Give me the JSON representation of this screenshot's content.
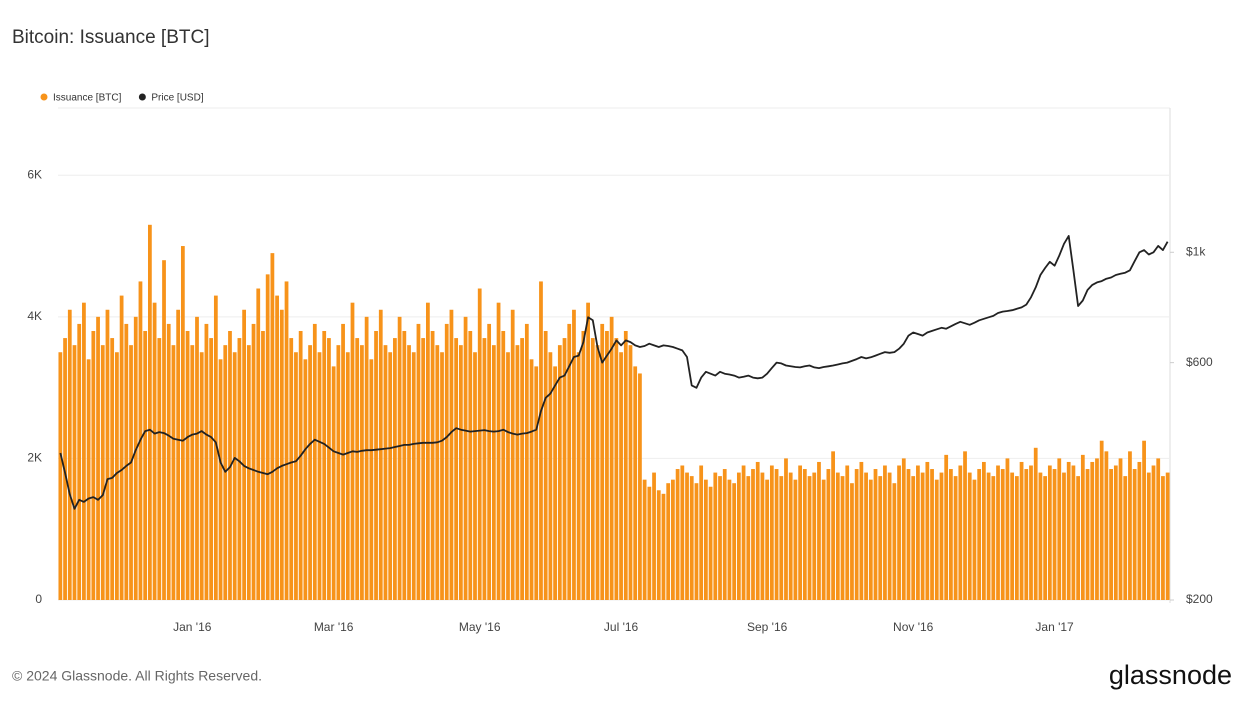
{
  "chart_data": {
    "type": "bar-line",
    "title": "Bitcoin: Issuance [BTC]",
    "footer": "© 2024 Glassnode. All Rights Reserved.",
    "brand": "glassnode",
    "categories": [
      null,
      null,
      null,
      null,
      null,
      null,
      null,
      null,
      null,
      null,
      null,
      null,
      null,
      null,
      null,
      null,
      null,
      null,
      null,
      null,
      null,
      null,
      null,
      null,
      null,
      null,
      null,
      null,
      "Jan '16",
      null,
      null,
      null,
      null,
      null,
      null,
      null,
      null,
      null,
      null,
      null,
      null,
      null,
      null,
      null,
      null,
      null,
      null,
      null,
      null,
      null,
      null,
      null,
      null,
      null,
      null,
      null,
      null,
      null,
      "Mar '16",
      null,
      null,
      null,
      null,
      null,
      null,
      null,
      null,
      null,
      null,
      null,
      null,
      null,
      null,
      null,
      null,
      null,
      null,
      null,
      null,
      null,
      null,
      null,
      null,
      null,
      null,
      null,
      null,
      null,
      null,
      "May '16",
      null,
      null,
      null,
      null,
      null,
      null,
      null,
      null,
      null,
      null,
      null,
      null,
      null,
      null,
      null,
      null,
      null,
      null,
      null,
      null,
      null,
      null,
      null,
      null,
      null,
      null,
      null,
      null,
      null,
      "Jul '16",
      null,
      null,
      null,
      null,
      null,
      null,
      null,
      null,
      null,
      null,
      null,
      null,
      null,
      null,
      null,
      null,
      null,
      null,
      null,
      null,
      null,
      null,
      null,
      null,
      null,
      null,
      null,
      null,
      null,
      null,
      "Sep '16",
      null,
      null,
      null,
      null,
      null,
      null,
      null,
      null,
      null,
      null,
      null,
      null,
      null,
      null,
      null,
      null,
      null,
      null,
      null,
      null,
      null,
      null,
      null,
      null,
      null,
      null,
      null,
      null,
      null,
      null,
      "Nov '16",
      null,
      null,
      null,
      null,
      null,
      null,
      null,
      null,
      null,
      null,
      null,
      null,
      null,
      null,
      null,
      null,
      null,
      null,
      null,
      null,
      null,
      null,
      null,
      null,
      null,
      null,
      null,
      null,
      null,
      "Jan '17",
      null,
      null,
      null,
      null,
      null,
      null,
      null,
      null,
      null,
      null,
      null,
      null,
      null,
      null,
      null,
      null,
      null,
      null,
      null,
      null,
      null,
      null,
      null,
      null
    ],
    "series": [
      {
        "name": "Issuance [BTC]",
        "color": "#f7931a",
        "values": [
          3500,
          3700,
          4100,
          3600,
          3900,
          4200,
          3400,
          3800,
          4000,
          3600,
          4100,
          3700,
          3500,
          4300,
          3900,
          3600,
          4000,
          4500,
          3800,
          5300,
          4200,
          3700,
          4800,
          3900,
          3600,
          4100,
          5000,
          3800,
          3600,
          4000,
          3500,
          3900,
          3700,
          4300,
          3400,
          3600,
          3800,
          3500,
          3700,
          4100,
          3600,
          3900,
          4400,
          3800,
          4600,
          4900,
          4300,
          4100,
          4500,
          3700,
          3500,
          3800,
          3400,
          3600,
          3900,
          3500,
          3800,
          3700,
          3300,
          3600,
          3900,
          3500,
          4200,
          3700,
          3600,
          4000,
          3400,
          3800,
          4100,
          3600,
          3500,
          3700,
          4000,
          3800,
          3600,
          3500,
          3900,
          3700,
          4200,
          3800,
          3600,
          3500,
          3900,
          4100,
          3700,
          3600,
          4000,
          3800,
          3500,
          4400,
          3700,
          3900,
          3600,
          4200,
          3800,
          3500,
          4100,
          3600,
          3700,
          3900,
          3400,
          3300,
          4500,
          3800,
          3500,
          3300,
          3600,
          3700,
          3900,
          4100,
          3500,
          3800,
          4200,
          3700,
          3600,
          3900,
          3800,
          4000,
          3700,
          3500,
          3800,
          3600,
          3300,
          3200,
          1700,
          1600,
          1800,
          1550,
          1500,
          1650,
          1700,
          1850,
          1900,
          1800,
          1750,
          1650,
          1900,
          1700,
          1600,
          1800,
          1750,
          1850,
          1700,
          1650,
          1800,
          1900,
          1750,
          1850,
          1950,
          1800,
          1700,
          1900,
          1850,
          1750,
          2000,
          1800,
          1700,
          1900,
          1850,
          1750,
          1800,
          1950,
          1700,
          1850,
          2100,
          1800,
          1750,
          1900,
          1650,
          1850,
          1950,
          1800,
          1700,
          1850,
          1750,
          1900,
          1800,
          1650,
          1900,
          2000,
          1850,
          1750,
          1900,
          1800,
          1950,
          1850,
          1700,
          1800,
          2050,
          1850,
          1750,
          1900,
          2100,
          1800,
          1700,
          1850,
          1950,
          1800,
          1750,
          1900,
          1850,
          2000,
          1800,
          1750,
          1950,
          1850,
          1900,
          2150,
          1800,
          1750,
          1900,
          1850,
          2000,
          1800,
          1950,
          1900,
          1750,
          2050,
          1850,
          1950,
          2000,
          2250,
          2100,
          1850,
          1900,
          2000,
          1750,
          2100,
          1850,
          1950,
          2250,
          1800,
          1900,
          2000,
          1750,
          1800
        ]
      },
      {
        "name": "Price [USD]",
        "color": "#222222",
        "axis": "y2",
        "values": [
          395,
          360,
          326,
          305,
          318,
          315,
          320,
          322,
          318,
          325,
          350,
          352,
          360,
          365,
          372,
          378,
          400,
          420,
          437,
          440,
          432,
          435,
          433,
          428,
          422,
          420,
          418,
          425,
          430,
          432,
          437,
          430,
          425,
          415,
          378,
          362,
          370,
          386,
          380,
          372,
          368,
          365,
          362,
          360,
          358,
          362,
          368,
          372,
          375,
          378,
          380,
          390,
          402,
          412,
          420,
          416,
          412,
          405,
          398,
          395,
          392,
          395,
          398,
          397,
          399,
          400,
          400,
          401,
          402,
          403,
          404,
          406,
          408,
          410,
          410,
          412,
          413,
          414,
          414,
          414,
          415,
          418,
          425,
          435,
          443,
          440,
          438,
          436,
          437,
          438,
          439,
          437,
          436,
          437,
          440,
          435,
          432,
          430,
          432,
          433,
          436,
          440,
          480,
          510,
          520,
          540,
          560,
          565,
          590,
          616,
          620,
          660,
          740,
          730,
          645,
          600,
          620,
          640,
          665,
          650,
          665,
          660,
          650,
          645,
          648,
          655,
          650,
          645,
          650,
          648,
          645,
          640,
          635,
          616,
          540,
          534,
          560,
          575,
          570,
          565,
          575,
          570,
          568,
          565,
          560,
          562,
          565,
          560,
          558,
          560,
          570,
          585,
          600,
          598,
          592,
          590,
          588,
          587,
          590,
          592,
          587,
          585,
          588,
          590,
          592,
          595,
          598,
          600,
          605,
          610,
          616,
          612,
          615,
          620,
          625,
          630,
          628,
          630,
          640,
          655,
          680,
          690,
          685,
          680,
          690,
          695,
          700,
          705,
          702,
          710,
          718,
          725,
          720,
          715,
          722,
          730,
          735,
          740,
          745,
          755,
          760,
          762,
          765,
          770,
          775,
          785,
          812,
          850,
          900,
          930,
          957,
          940,
          985,
          1040,
          1079,
          920,
          780,
          800,
          840,
          860,
          870,
          875,
          885,
          890,
          900,
          905,
          910,
          920,
          960,
          1000,
          1010,
          990,
          1000,
          1030,
          1010,
          1050
        ]
      }
    ],
    "ylim": [
      0,
      6950
    ],
    "yticks": [
      0,
      {
        "value": 2000,
        "label": "2K"
      },
      {
        "value": 4000,
        "label": "4K"
      },
      {
        "value": 6000,
        "label": "6K"
      }
    ],
    "y2lim": [
      200,
      1950
    ],
    "y2log": true,
    "y2ticks": [
      {
        "value": 200,
        "label": "$200"
      },
      {
        "value": 600,
        "label": "$600"
      },
      {
        "value": 1000,
        "label": "$1k"
      }
    ],
    "grid": true,
    "legend": "top-left"
  }
}
